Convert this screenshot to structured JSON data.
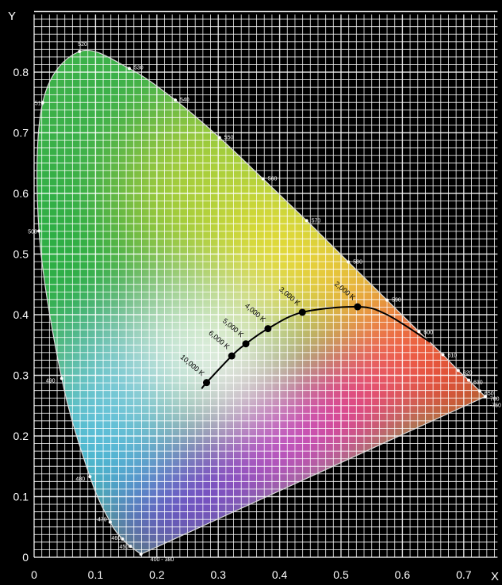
{
  "chart_data": {
    "type": "scatter",
    "title": "",
    "xlabel": "X",
    "ylabel": "Y",
    "xlim": [
      0,
      0.75
    ],
    "ylim": [
      0,
      0.85
    ],
    "x_ticks": [
      "0",
      "0.1",
      "0.2",
      "0.3",
      "0.4",
      "0.5",
      "0.6",
      "0.7"
    ],
    "y_ticks": [
      "0",
      "0.1",
      "0.2",
      "0.3",
      "0.4",
      "0.5",
      "0.6",
      "0.7",
      "0.8"
    ],
    "grid": true,
    "spectral_locus": [
      {
        "label": "400 - 380",
        "x": 0.174,
        "y": 0.005
      },
      {
        "label": "450",
        "x": 0.157,
        "y": 0.018
      },
      {
        "label": "460",
        "x": 0.144,
        "y": 0.03
      },
      {
        "label": "470",
        "x": 0.124,
        "y": 0.058
      },
      {
        "label": "480",
        "x": 0.091,
        "y": 0.133
      },
      {
        "label": "490",
        "x": 0.045,
        "y": 0.295
      },
      {
        "label": "500",
        "x": 0.008,
        "y": 0.538
      },
      {
        "label": "510",
        "x": 0.014,
        "y": 0.75
      },
      {
        "label": "520",
        "x": 0.074,
        "y": 0.834
      },
      {
        "label": "530",
        "x": 0.155,
        "y": 0.806
      },
      {
        "label": "540",
        "x": 0.23,
        "y": 0.754
      },
      {
        "label": "550",
        "x": 0.302,
        "y": 0.692
      },
      {
        "label": "560",
        "x": 0.373,
        "y": 0.624
      },
      {
        "label": "570",
        "x": 0.444,
        "y": 0.555
      },
      {
        "label": "580",
        "x": 0.512,
        "y": 0.487
      },
      {
        "label": "590",
        "x": 0.575,
        "y": 0.424
      },
      {
        "label": "600",
        "x": 0.627,
        "y": 0.372
      },
      {
        "label": "610",
        "x": 0.666,
        "y": 0.334
      },
      {
        "label": "620",
        "x": 0.691,
        "y": 0.308
      },
      {
        "label": "630",
        "x": 0.708,
        "y": 0.292
      },
      {
        "label": "650",
        "x": 0.726,
        "y": 0.274
      },
      {
        "label": "700",
        "x": 0.735,
        "y": 0.265
      },
      {
        "label": "-750",
        "x": 0.735,
        "y": 0.265
      }
    ],
    "planckian_locus": [
      {
        "label": "10,000 K",
        "x": 0.281,
        "y": 0.288
      },
      {
        "label": "6,000 K",
        "x": 0.322,
        "y": 0.332
      },
      {
        "label": "5,000 K",
        "x": 0.345,
        "y": 0.352
      },
      {
        "label": "4,000 K",
        "x": 0.381,
        "y": 0.377
      },
      {
        "label": "3,000 K",
        "x": 0.437,
        "y": 0.404
      },
      {
        "label": "2,000 K",
        "x": 0.527,
        "y": 0.413
      }
    ]
  }
}
